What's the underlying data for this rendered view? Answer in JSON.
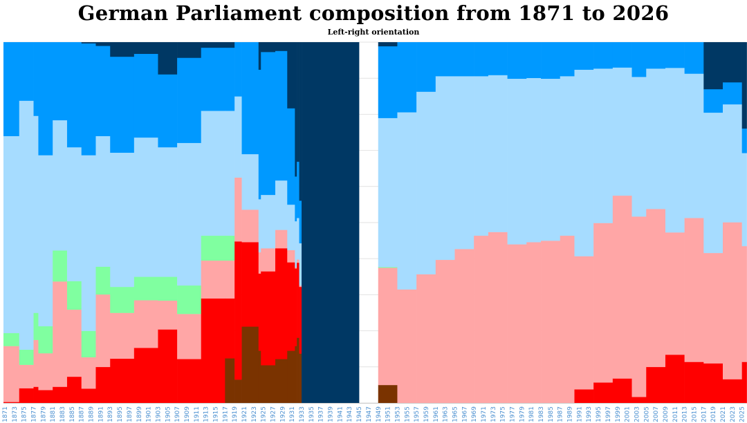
{
  "chart_data": {
    "type": "area",
    "subtype": "stacked-step-100-percent",
    "title": "German Parliament composition from 1871 to 2026",
    "subtitle": "Left-right orientation",
    "xlabel": "",
    "ylabel": "",
    "xlim": [
      1871,
      2026
    ],
    "ylim": [
      0,
      100
    ],
    "grid": true,
    "legend": "none",
    "x_tick_labels": [
      "1871",
      "1873",
      "1875",
      "1877",
      "1879",
      "1881",
      "1883",
      "1885",
      "1887",
      "1889",
      "1891",
      "1893",
      "1895",
      "1897",
      "1899",
      "1901",
      "1903",
      "1905",
      "1907",
      "1909",
      "1911",
      "1913",
      "1915",
      "1917",
      "1919",
      "1921",
      "1923",
      "1925",
      "1927",
      "1929",
      "1931",
      "1933",
      "1935",
      "1937",
      "1939",
      "1941",
      "1943",
      "1945",
      "1947",
      "1949",
      "1951",
      "1953",
      "1955",
      "1957",
      "1959",
      "1961",
      "1963",
      "1965",
      "1967",
      "1969",
      "1971",
      "1973",
      "1975",
      "1977",
      "1979",
      "1981",
      "1983",
      "1985",
      "1987",
      "1989",
      "1991",
      "1993",
      "1995",
      "1997",
      "1999",
      "2001",
      "2003",
      "2005",
      "2007",
      "2009",
      "2011",
      "2013",
      "2015",
      "2017",
      "2019",
      "2021",
      "2023",
      "2025"
    ],
    "series": [
      {
        "key": "far-left",
        "color": "#7a3300"
      },
      {
        "key": "left",
        "color": "#ff0000"
      },
      {
        "key": "centre-left",
        "color": "#ffa6a6"
      },
      {
        "key": "centre",
        "color": "#80ffa0"
      },
      {
        "key": "centre-right",
        "color": "#a6dcff"
      },
      {
        "key": "right",
        "color": "#0099ff"
      },
      {
        "key": "far-right",
        "color": "#003864"
      }
    ],
    "segments_note": "each row: [start_year, end_year, cumulative % top of each series in order far-left..far-right]",
    "segments": [
      [
        1871,
        1874,
        0,
        0.3,
        15.8,
        19.4,
        74,
        100,
        100
      ],
      [
        1874,
        1877,
        0,
        4.1,
        10.6,
        14.8,
        83.8,
        100,
        100
      ],
      [
        1877,
        1878,
        0,
        4.5,
        17.5,
        25,
        79.6,
        100,
        100
      ],
      [
        1878,
        1881,
        0,
        3.6,
        13.8,
        21.3,
        68.7,
        100,
        100
      ],
      [
        1881,
        1884,
        0,
        4.5,
        33.7,
        42.3,
        78.4,
        100,
        100
      ],
      [
        1884,
        1887,
        0,
        7.3,
        25.9,
        33.8,
        70.9,
        100,
        100
      ],
      [
        1887,
        1890,
        0,
        4,
        12.7,
        20,
        68.7,
        99.7,
        100
      ],
      [
        1890,
        1893,
        0,
        10,
        30.1,
        37.8,
        74,
        99,
        100
      ],
      [
        1893,
        1898,
        0,
        12.3,
        25,
        32.2,
        69.4,
        96,
        100
      ],
      [
        1898,
        1903,
        0,
        15.3,
        28.5,
        35,
        73.6,
        96.8,
        100
      ],
      [
        1903,
        1907,
        0,
        20.4,
        28.4,
        35,
        70.9,
        91.1,
        100
      ],
      [
        1907,
        1912,
        0,
        12.2,
        24.7,
        32.6,
        72.1,
        95.7,
        100
      ],
      [
        1912,
        1917,
        0,
        29,
        39.5,
        46.4,
        81,
        98.5,
        100
      ],
      [
        1917,
        1919,
        12.4,
        29,
        39.5,
        46.4,
        81,
        98.5,
        100
      ],
      [
        1919,
        1920.5,
        6.5,
        44.8,
        62.5,
        62.5,
        85,
        100,
        100
      ],
      [
        1920.5,
        1924,
        21.2,
        44.6,
        53.6,
        53.6,
        69,
        100,
        100
      ],
      [
        1924,
        1924.5,
        14.5,
        35.9,
        41.8,
        41.8,
        56.5,
        92.4,
        100
      ],
      [
        1924.5,
        1927.5,
        10.5,
        36.5,
        42.9,
        42.9,
        57.7,
        97.3,
        100
      ],
      [
        1927.5,
        1930,
        12.2,
        42.9,
        48,
        48,
        61.7,
        97.6,
        100
      ],
      [
        1930,
        1931.6,
        14.5,
        39,
        42.4,
        42.4,
        55,
        81.7,
        100
      ],
      [
        1931.6,
        1932,
        15.8,
        37.3,
        37.6,
        37.6,
        50.4,
        62.8,
        100
      ],
      [
        1932,
        1932.5,
        18.1,
        38.9,
        39.8,
        39.8,
        51.3,
        66.9,
        100
      ],
      [
        1932.5,
        1933,
        13.7,
        32.2,
        32.6,
        32.6,
        44.3,
        56.1,
        100
      ],
      [
        1933,
        1945,
        0,
        0,
        0,
        0,
        0,
        0,
        100
      ],
      [
        1949,
        1953,
        5,
        5,
        37.5,
        37.7,
        79,
        98.9,
        100
      ],
      [
        1953,
        1957,
        0,
        0,
        31.5,
        31.5,
        80.6,
        100,
        100
      ],
      [
        1957,
        1961,
        0,
        0,
        35.7,
        35.7,
        86.3,
        100,
        100
      ],
      [
        1961,
        1965,
        0,
        0,
        39.7,
        39.7,
        90.6,
        100,
        100
      ],
      [
        1965,
        1969,
        0,
        0,
        42.7,
        42.7,
        90.6,
        100,
        100
      ],
      [
        1969,
        1972,
        0,
        0,
        46.4,
        46.4,
        90.6,
        100,
        100
      ],
      [
        1972,
        1976,
        0,
        0,
        47.4,
        47.4,
        90.9,
        100,
        100
      ],
      [
        1976,
        1980,
        0,
        0,
        44,
        44,
        89.9,
        100,
        100
      ],
      [
        1980,
        1983,
        0,
        0,
        44.6,
        44.6,
        90.1,
        100,
        100
      ],
      [
        1983,
        1987,
        0,
        0,
        45,
        45,
        89.9,
        100,
        100
      ],
      [
        1987,
        1990,
        0,
        0,
        46.4,
        46.4,
        90.6,
        100,
        100
      ],
      [
        1990,
        1994,
        0,
        3.8,
        40.7,
        40.7,
        92.4,
        100,
        100
      ],
      [
        1994,
        1998,
        0,
        5.7,
        49.9,
        49.9,
        92.7,
        100,
        100
      ],
      [
        1998,
        2002,
        0,
        6.8,
        57.5,
        57.5,
        93,
        100,
        100
      ],
      [
        2002,
        2005,
        0,
        1.7,
        51.7,
        51.7,
        90.4,
        100,
        100
      ],
      [
        2005,
        2009,
        0,
        10,
        53.8,
        53.8,
        92.7,
        100,
        100
      ],
      [
        2009,
        2013,
        0,
        13.4,
        47.3,
        47.3,
        92.9,
        100,
        100
      ],
      [
        2013,
        2017,
        0,
        11.4,
        51.3,
        51.3,
        91.3,
        100,
        100
      ],
      [
        2017,
        2021,
        0,
        11,
        41.6,
        41.6,
        80.5,
        87,
        100
      ],
      [
        2021,
        2025,
        0,
        6.6,
        50.1,
        50.1,
        82.8,
        88.9,
        100
      ],
      [
        2025,
        2026,
        0,
        11.4,
        43.5,
        43.5,
        69.3,
        76.1,
        100
      ]
    ]
  }
}
